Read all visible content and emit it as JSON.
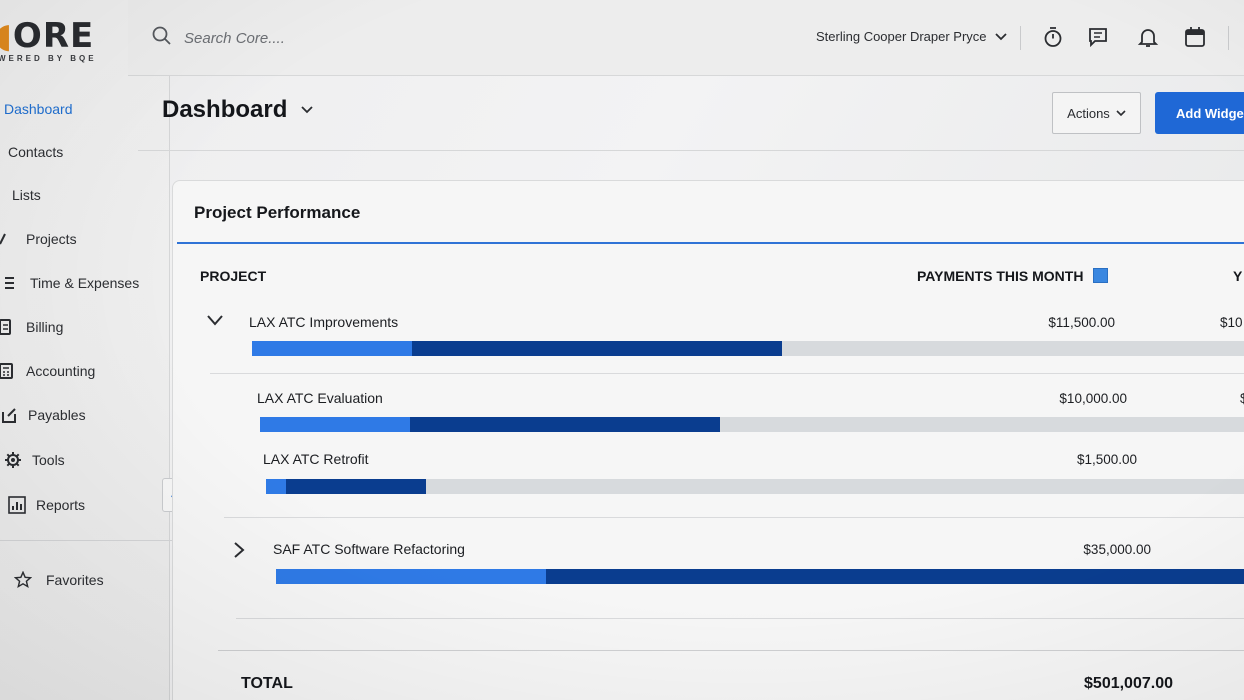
{
  "app": {
    "logo_text": "ORE",
    "logo_sub": "WERED BY BQE"
  },
  "sidebar": {
    "items": [
      {
        "label": "Dashboard",
        "icon": "dashboard-icon",
        "active": true
      },
      {
        "label": "Contacts",
        "icon": "contacts-icon"
      },
      {
        "label": "Lists",
        "icon": "lists-icon"
      },
      {
        "label": "Projects",
        "icon": "projects-icon"
      },
      {
        "label": "Time & Expenses",
        "icon": "time-expenses-icon"
      },
      {
        "label": "Billing",
        "icon": "billing-icon"
      },
      {
        "label": "Accounting",
        "icon": "accounting-icon"
      },
      {
        "label": "Payables",
        "icon": "payables-icon"
      },
      {
        "label": "Tools",
        "icon": "gear-icon"
      },
      {
        "label": "Reports",
        "icon": "reports-icon"
      }
    ],
    "favorites_label": "Favorites"
  },
  "topbar": {
    "search_placeholder": "Search Core....",
    "company": "Sterling Cooper Draper Pryce"
  },
  "page": {
    "title": "Dashboard",
    "actions_label": "Actions",
    "add_label": "Add Widge"
  },
  "card": {
    "title": "Project Performance",
    "col_project": "PROJECT",
    "col_payments": "PAYMENTS THIS MONTH",
    "col_next_partial": "Y",
    "legend_color": "#3a87e0",
    "rows": [
      {
        "label": "LAX ATC Improvements",
        "amount": "$11,500.00",
        "amount2": "$10",
        "paid_fraction": 0.16,
        "bar_fraction": 0.53,
        "expanded": true
      },
      {
        "label": "LAX ATC Evaluation",
        "amount": "$10,000.00",
        "amount2": "$",
        "paid_fraction": 0.15,
        "bar_fraction": 0.46
      },
      {
        "label": "LAX ATC Retrofit",
        "amount": "$1,500.00",
        "amount2": "",
        "paid_fraction": 0.02,
        "bar_fraction": 0.16
      },
      {
        "label": "SAF ATC Software Refactoring",
        "amount": "$35,000.00",
        "amount2": "",
        "paid_fraction": 0.27,
        "bar_fraction": 1.0,
        "expanded": false
      }
    ],
    "total_label": "TOTAL",
    "total_amount": "$501,007.00"
  }
}
